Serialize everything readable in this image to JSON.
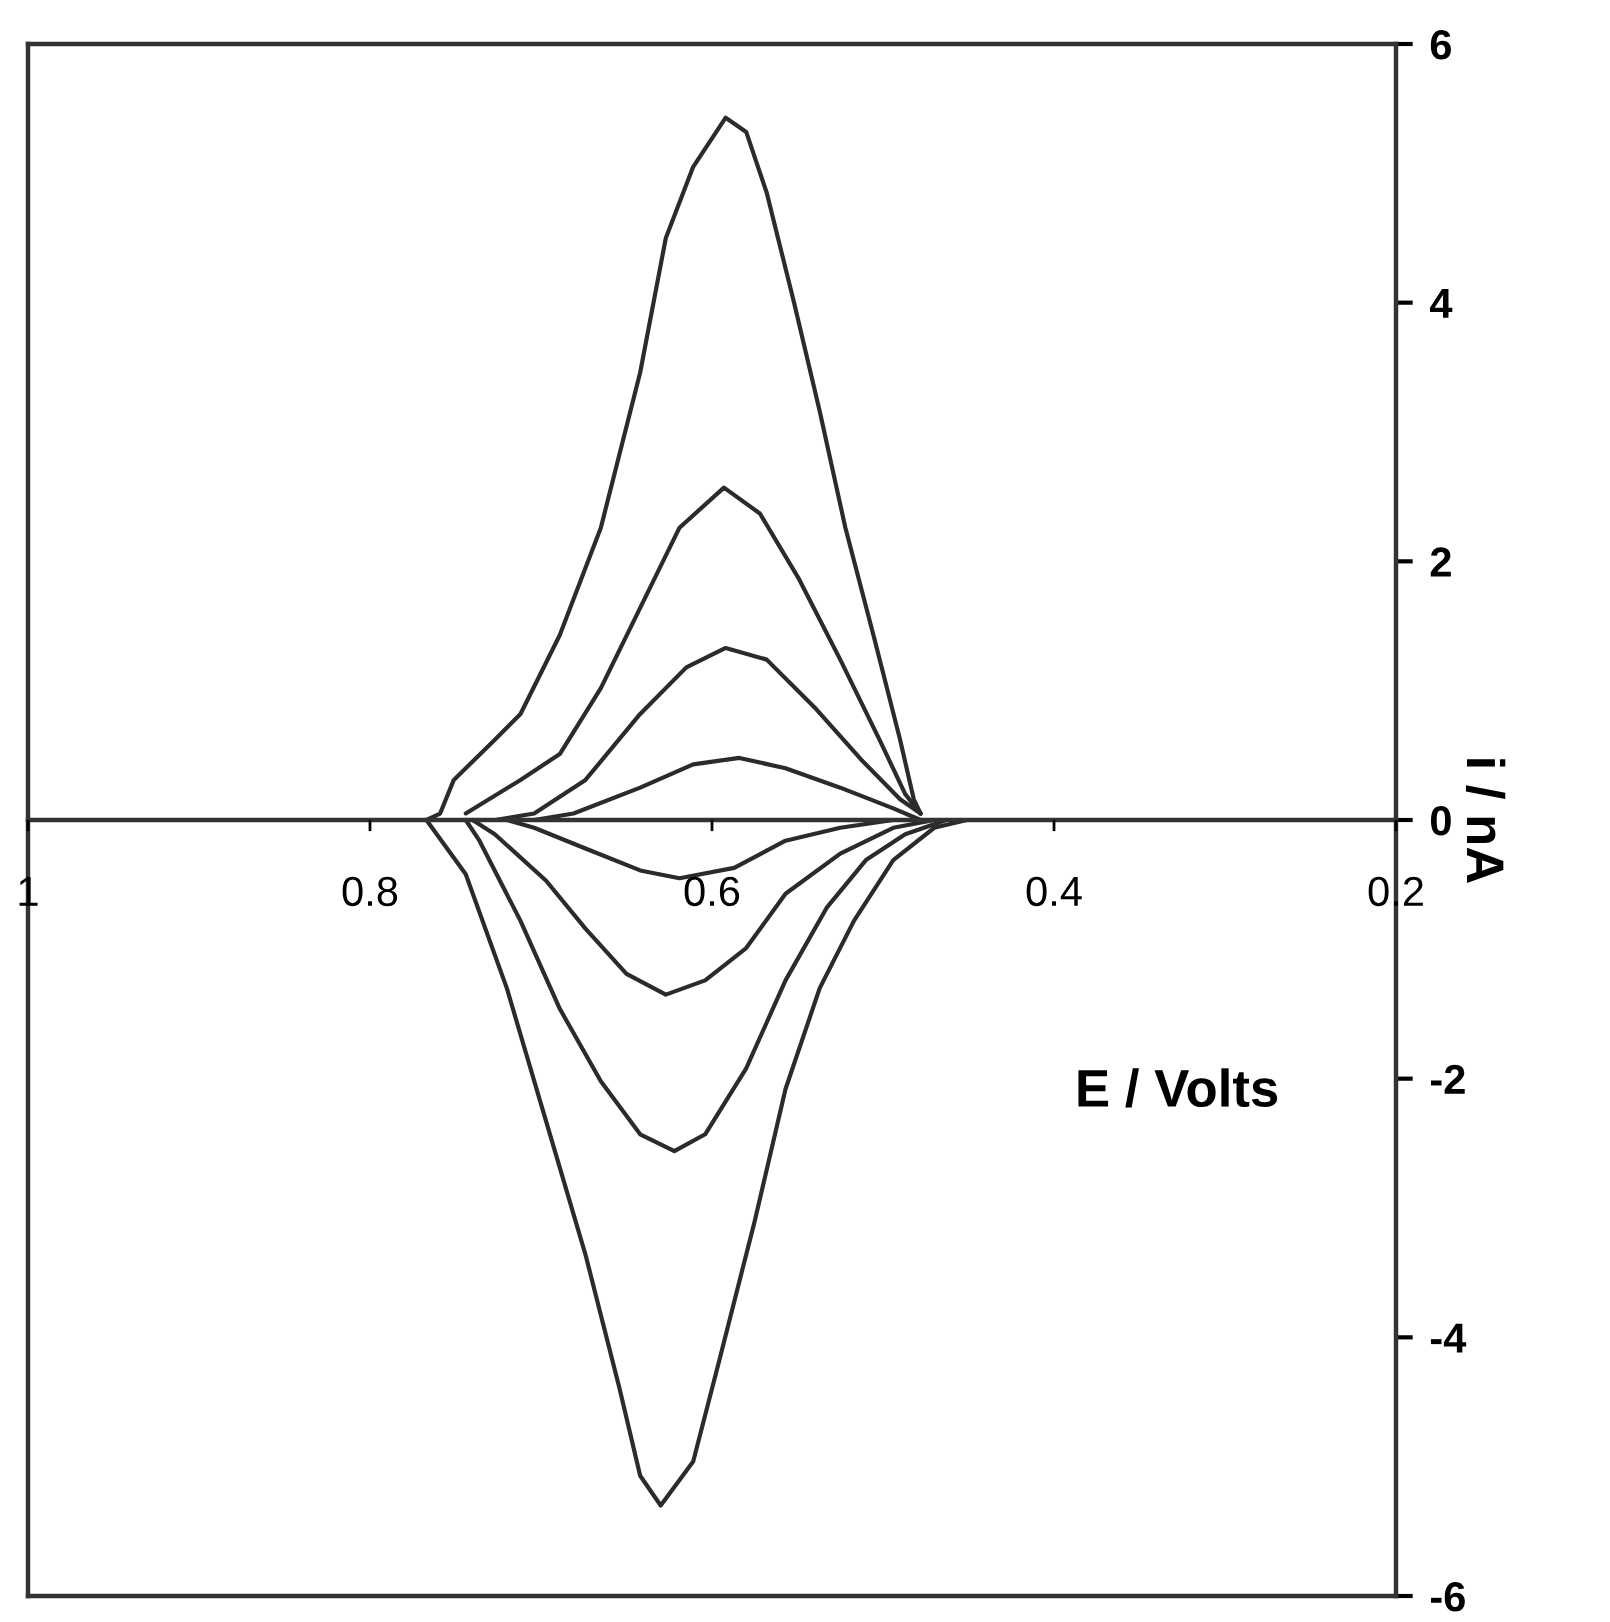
{
  "chart_data": {
    "type": "line",
    "xlabel": "E / Volts",
    "ylabel": "i / nA",
    "xlim": [
      1,
      0.2
    ],
    "xticks": [
      1,
      0.8,
      0.6,
      0.4,
      0.2
    ],
    "ylim": [
      -6,
      6
    ],
    "yticks": [
      -6,
      -4,
      -2,
      0,
      2,
      4,
      6
    ],
    "grid": false,
    "marker": "none",
    "line_style": "solid",
    "series": [
      {
        "color": "#2b2b2b",
        "x": [
          0.767,
          0.759,
          0.751,
          0.727,
          0.712,
          0.689,
          0.665,
          0.642,
          0.627,
          0.611,
          0.592,
          0.58,
          0.568,
          0.552,
          0.537,
          0.522,
          0.505,
          0.49,
          0.482,
          0.478
        ],
        "values": [
          0,
          0.05,
          0.31,
          0.62,
          0.82,
          1.43,
          2.26,
          3.46,
          4.5,
          5.05,
          5.43,
          5.32,
          4.85,
          4.0,
          3.16,
          2.26,
          1.4,
          0.62,
          0.16,
          0.05
        ]
      },
      {
        "color": "#2b2b2b",
        "x": [
          0.767,
          0.744,
          0.72,
          0.697,
          0.674,
          0.654,
          0.642,
          0.63,
          0.611,
          0.595,
          0.575,
          0.557,
          0.537,
          0.517,
          0.494,
          0.47,
          0.451
        ],
        "values": [
          0,
          -0.42,
          -1.3,
          -2.33,
          -3.36,
          -4.4,
          -5.07,
          -5.3,
          -4.96,
          -4.14,
          -3.1,
          -2.08,
          -1.3,
          -0.78,
          -0.31,
          -0.06,
          0
        ]
      },
      {
        "color": "#2b2b2b",
        "x": [
          0.744,
          0.712,
          0.689,
          0.665,
          0.642,
          0.619,
          0.593,
          0.572,
          0.549,
          0.525,
          0.502,
          0.487,
          0.478
        ],
        "values": [
          0.05,
          0.31,
          0.51,
          1.02,
          1.64,
          2.26,
          2.57,
          2.37,
          1.86,
          1.24,
          0.62,
          0.2,
          0.05
        ]
      },
      {
        "color": "#2b2b2b",
        "x": [
          0.744,
          0.736,
          0.712,
          0.689,
          0.665,
          0.642,
          0.622,
          0.604,
          0.58,
          0.557,
          0.533,
          0.51,
          0.487,
          0.463
        ],
        "values": [
          0,
          -0.16,
          -0.78,
          -1.46,
          -2.02,
          -2.43,
          -2.56,
          -2.43,
          -1.92,
          -1.24,
          -0.68,
          -0.31,
          -0.11,
          0
        ]
      },
      {
        "color": "#2b2b2b",
        "x": [
          0.727,
          0.704,
          0.674,
          0.642,
          0.615,
          0.592,
          0.568,
          0.54,
          0.513,
          0.49,
          0.478
        ],
        "values": [
          0,
          0.05,
          0.31,
          0.82,
          1.18,
          1.33,
          1.24,
          0.87,
          0.47,
          0.16,
          0.05
        ]
      },
      {
        "color": "#2b2b2b",
        "x": [
          0.74,
          0.727,
          0.697,
          0.674,
          0.65,
          0.627,
          0.604,
          0.58,
          0.557,
          0.525,
          0.494,
          0.47
        ],
        "values": [
          0,
          -0.11,
          -0.47,
          -0.84,
          -1.19,
          -1.35,
          -1.24,
          -0.99,
          -0.57,
          -0.26,
          -0.06,
          0
        ]
      },
      {
        "color": "#2b2b2b",
        "x": [
          0.704,
          0.681,
          0.642,
          0.611,
          0.584,
          0.557,
          0.525,
          0.494,
          0.478
        ],
        "values": [
          0,
          0.05,
          0.25,
          0.43,
          0.48,
          0.4,
          0.25,
          0.09,
          0
        ]
      },
      {
        "color": "#2b2b2b",
        "x": [
          0.72,
          0.704,
          0.674,
          0.642,
          0.619,
          0.587,
          0.557,
          0.525,
          0.494
        ],
        "values": [
          0,
          -0.06,
          -0.22,
          -0.39,
          -0.45,
          -0.37,
          -0.16,
          -0.06,
          0
        ]
      }
    ]
  }
}
